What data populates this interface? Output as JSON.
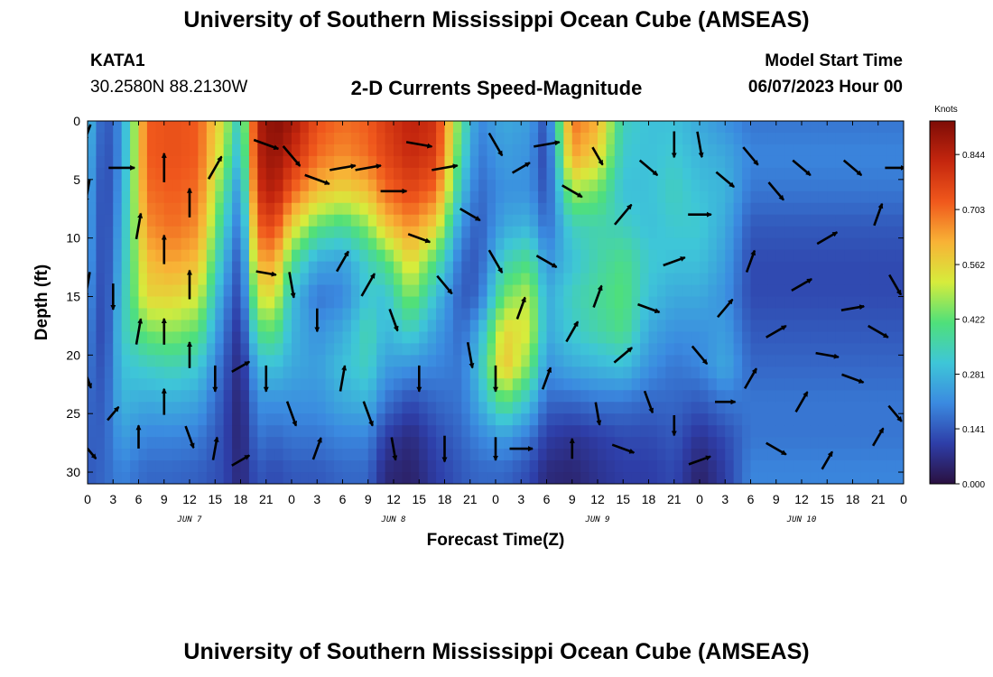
{
  "header": {
    "title": "University of Southern Mississippi Ocean Cube (AMSEAS)",
    "station": "KATA1",
    "coordinates": "30.2580N  88.2130W",
    "subtitle": "2-D Currents Speed-Magnitude",
    "start_label": "Model Start Time",
    "start_value": "06/07/2023 Hour 00"
  },
  "footer": {
    "title": "University of Southern Mississippi Ocean Cube (AMSEAS)"
  },
  "chart_data": {
    "type": "heatmap",
    "title": "2-D Currents Speed-Magnitude",
    "xlabel": "Forecast Time(Z)",
    "ylabel": "Depth (ft)",
    "x_tick_labels": [
      "0",
      "3",
      "6",
      "9",
      "12",
      "15",
      "18",
      "21",
      "0",
      "3",
      "6",
      "9",
      "12",
      "15",
      "18",
      "21",
      "0",
      "3",
      "6",
      "9",
      "12",
      "15",
      "18",
      "21",
      "0",
      "3",
      "6",
      "9",
      "12",
      "15",
      "18",
      "21",
      "0"
    ],
    "x_range_hours": [
      0,
      96
    ],
    "day_labels": [
      {
        "label": "JUN 7",
        "hour": 12
      },
      {
        "label": "JUN 8",
        "hour": 36
      },
      {
        "label": "JUN 9",
        "hour": 60
      },
      {
        "label": "JUN 10",
        "hour": 84
      }
    ],
    "y_ticks": [
      0,
      5,
      10,
      15,
      20,
      25,
      30
    ],
    "y_range_ft": [
      0,
      31
    ],
    "y_inverted": true,
    "colorbar": {
      "title": "Knots",
      "ticks": [
        0.0,
        0.141,
        0.281,
        0.422,
        0.562,
        0.703,
        0.844
      ],
      "tick_labels": [
        "0.000",
        "0.141",
        "0.281",
        "0.422",
        "0.562",
        "0.703",
        "0.844"
      ],
      "range": [
        0,
        0.93
      ],
      "colors": [
        "#2a1040",
        "#2e3ea8",
        "#3b8ae0",
        "#3ec6d8",
        "#4fe07a",
        "#d6ec3c",
        "#f8b236",
        "#f0581c",
        "#c4260e",
        "#7e0c06"
      ]
    },
    "depths": [
      0,
      3,
      6,
      9,
      12,
      15,
      18,
      21,
      24,
      27,
      30
    ],
    "speed_knots_by_time": [
      {
        "hour": 0,
        "speeds": [
          0.3,
          0.28,
          0.26,
          0.25,
          0.24,
          0.22,
          0.2,
          0.18,
          0.16,
          0.15,
          0.14
        ]
      },
      {
        "hour": 2,
        "speeds": [
          0.12,
          0.11,
          0.1,
          0.1,
          0.1,
          0.1,
          0.1,
          0.12,
          0.14,
          0.15,
          0.16
        ]
      },
      {
        "hour": 4,
        "speeds": [
          0.22,
          0.22,
          0.24,
          0.26,
          0.28,
          0.3,
          0.32,
          0.3,
          0.28,
          0.24,
          0.2
        ]
      },
      {
        "hour": 7,
        "speeds": [
          0.72,
          0.72,
          0.7,
          0.66,
          0.6,
          0.56,
          0.44,
          0.33,
          0.26,
          0.2,
          0.16
        ]
      },
      {
        "hour": 10,
        "speeds": [
          0.74,
          0.74,
          0.72,
          0.7,
          0.64,
          0.56,
          0.46,
          0.35,
          0.27,
          0.2,
          0.16
        ]
      },
      {
        "hour": 13,
        "speeds": [
          0.72,
          0.72,
          0.7,
          0.66,
          0.6,
          0.52,
          0.42,
          0.32,
          0.25,
          0.19,
          0.15
        ]
      },
      {
        "hour": 16,
        "speeds": [
          0.52,
          0.48,
          0.4,
          0.34,
          0.28,
          0.22,
          0.18,
          0.15,
          0.13,
          0.12,
          0.12
        ]
      },
      {
        "hour": 18,
        "speeds": [
          0.3,
          0.26,
          0.2,
          0.16,
          0.12,
          0.1,
          0.07,
          0.05,
          0.04,
          0.04,
          0.05
        ]
      },
      {
        "hour": 20,
        "speeds": [
          0.85,
          0.84,
          0.8,
          0.72,
          0.62,
          0.52,
          0.4,
          0.28,
          0.22,
          0.18,
          0.14
        ]
      },
      {
        "hour": 22,
        "speeds": [
          0.92,
          0.9,
          0.86,
          0.76,
          0.64,
          0.54,
          0.42,
          0.3,
          0.22,
          0.16,
          0.12
        ]
      },
      {
        "hour": 24,
        "speeds": [
          0.88,
          0.82,
          0.72,
          0.56,
          0.4,
          0.3,
          0.28,
          0.26,
          0.22,
          0.18,
          0.14
        ]
      },
      {
        "hour": 27,
        "speeds": [
          0.74,
          0.7,
          0.6,
          0.42,
          0.26,
          0.18,
          0.22,
          0.24,
          0.22,
          0.18,
          0.14
        ]
      },
      {
        "hour": 30,
        "speeds": [
          0.7,
          0.66,
          0.56,
          0.38,
          0.24,
          0.2,
          0.26,
          0.3,
          0.26,
          0.2,
          0.16
        ]
      },
      {
        "hour": 33,
        "speeds": [
          0.72,
          0.7,
          0.6,
          0.46,
          0.34,
          0.32,
          0.36,
          0.34,
          0.28,
          0.2,
          0.16
        ]
      },
      {
        "hour": 35,
        "speeds": [
          0.78,
          0.76,
          0.7,
          0.58,
          0.4,
          0.3,
          0.28,
          0.24,
          0.18,
          0.1,
          0.06
        ]
      },
      {
        "hour": 38,
        "speeds": [
          0.84,
          0.82,
          0.76,
          0.66,
          0.56,
          0.46,
          0.34,
          0.22,
          0.12,
          0.06,
          0.04
        ]
      },
      {
        "hour": 41,
        "speeds": [
          0.8,
          0.78,
          0.7,
          0.56,
          0.4,
          0.3,
          0.24,
          0.2,
          0.16,
          0.12,
          0.1
        ]
      },
      {
        "hour": 44,
        "speeds": [
          0.4,
          0.36,
          0.3,
          0.22,
          0.16,
          0.14,
          0.16,
          0.18,
          0.18,
          0.16,
          0.14
        ]
      },
      {
        "hour": 46,
        "speeds": [
          0.2,
          0.18,
          0.16,
          0.14,
          0.14,
          0.16,
          0.26,
          0.3,
          0.26,
          0.2,
          0.16
        ]
      },
      {
        "hour": 49,
        "speeds": [
          0.26,
          0.24,
          0.22,
          0.26,
          0.34,
          0.44,
          0.56,
          0.6,
          0.42,
          0.24,
          0.16
        ]
      },
      {
        "hour": 52,
        "speeds": [
          0.24,
          0.22,
          0.22,
          0.28,
          0.4,
          0.5,
          0.52,
          0.44,
          0.3,
          0.18,
          0.12
        ]
      },
      {
        "hour": 54,
        "speeds": [
          0.12,
          0.1,
          0.12,
          0.16,
          0.22,
          0.26,
          0.26,
          0.22,
          0.16,
          0.1,
          0.06
        ]
      },
      {
        "hour": 57,
        "speeds": [
          0.7,
          0.64,
          0.48,
          0.34,
          0.3,
          0.34,
          0.32,
          0.26,
          0.16,
          0.08,
          0.05
        ]
      },
      {
        "hour": 60,
        "speeds": [
          0.62,
          0.56,
          0.44,
          0.36,
          0.36,
          0.38,
          0.36,
          0.28,
          0.18,
          0.1,
          0.08
        ]
      },
      {
        "hour": 63,
        "speeds": [
          0.34,
          0.32,
          0.3,
          0.34,
          0.4,
          0.42,
          0.4,
          0.3,
          0.18,
          0.12,
          0.1
        ]
      },
      {
        "hour": 66,
        "speeds": [
          0.3,
          0.3,
          0.3,
          0.3,
          0.32,
          0.3,
          0.26,
          0.22,
          0.16,
          0.12,
          0.1
        ]
      },
      {
        "hour": 69,
        "speeds": [
          0.3,
          0.32,
          0.34,
          0.32,
          0.3,
          0.26,
          0.22,
          0.18,
          0.16,
          0.14,
          0.12
        ]
      },
      {
        "hour": 72,
        "speeds": [
          0.26,
          0.28,
          0.3,
          0.32,
          0.3,
          0.26,
          0.22,
          0.2,
          0.14,
          0.08,
          0.04
        ]
      },
      {
        "hour": 75,
        "speeds": [
          0.22,
          0.26,
          0.28,
          0.26,
          0.24,
          0.22,
          0.24,
          0.26,
          0.18,
          0.12,
          0.1
        ]
      },
      {
        "hour": 78,
        "speeds": [
          0.18,
          0.2,
          0.18,
          0.14,
          0.12,
          0.12,
          0.14,
          0.16,
          0.18,
          0.18,
          0.2
        ]
      }
    ],
    "current_vectors": [
      {
        "hour": 0,
        "depth": 1,
        "dir_deg": 200,
        "len": 0.6
      },
      {
        "hour": 0,
        "depth": 6,
        "dir_deg": 190,
        "len": 0.8
      },
      {
        "hour": 0,
        "depth": 14,
        "dir_deg": 190,
        "len": 0.9
      },
      {
        "hour": 0,
        "depth": 22,
        "dir_deg": 160,
        "len": 0.7
      },
      {
        "hour": 0,
        "depth": 28,
        "dir_deg": 140,
        "len": 0.9
      },
      {
        "hour": 3,
        "depth": 15,
        "dir_deg": 180,
        "len": 0.9
      },
      {
        "hour": 3,
        "depth": 25,
        "dir_deg": 40,
        "len": 0.6
      },
      {
        "hour": 4,
        "depth": 4,
        "dir_deg": 90,
        "len": 0.9
      },
      {
        "hour": 6,
        "depth": 9,
        "dir_deg": 10,
        "len": 0.9
      },
      {
        "hour": 6,
        "depth": 18,
        "dir_deg": 10,
        "len": 0.9
      },
      {
        "hour": 6,
        "depth": 27,
        "dir_deg": 0,
        "len": 0.8
      },
      {
        "hour": 9,
        "depth": 4,
        "dir_deg": 0,
        "len": 1.0
      },
      {
        "hour": 9,
        "depth": 11,
        "dir_deg": 0,
        "len": 1.0
      },
      {
        "hour": 9,
        "depth": 18,
        "dir_deg": 0,
        "len": 0.9
      },
      {
        "hour": 9,
        "depth": 24,
        "dir_deg": 0,
        "len": 0.9
      },
      {
        "hour": 12,
        "depth": 7,
        "dir_deg": 0,
        "len": 1.0
      },
      {
        "hour": 12,
        "depth": 14,
        "dir_deg": 0,
        "len": 1.0
      },
      {
        "hour": 12,
        "depth": 20,
        "dir_deg": 0,
        "len": 0.9
      },
      {
        "hour": 12,
        "depth": 27,
        "dir_deg": 160,
        "len": 0.8
      },
      {
        "hour": 15,
        "depth": 4,
        "dir_deg": 30,
        "len": 0.9
      },
      {
        "hour": 15,
        "depth": 22,
        "dir_deg": 180,
        "len": 0.9
      },
      {
        "hour": 15,
        "depth": 28,
        "dir_deg": 10,
        "len": 0.8
      },
      {
        "hour": 18,
        "depth": 21,
        "dir_deg": 60,
        "len": 0.7
      },
      {
        "hour": 18,
        "depth": 29,
        "dir_deg": 60,
        "len": 0.7
      },
      {
        "hour": 21,
        "depth": 2,
        "dir_deg": 110,
        "len": 0.9
      },
      {
        "hour": 21,
        "depth": 13,
        "dir_deg": 100,
        "len": 0.7
      },
      {
        "hour": 21,
        "depth": 22,
        "dir_deg": 180,
        "len": 0.9
      },
      {
        "hour": 24,
        "depth": 3,
        "dir_deg": 140,
        "len": 0.9
      },
      {
        "hour": 24,
        "depth": 14,
        "dir_deg": 170,
        "len": 0.9
      },
      {
        "hour": 24,
        "depth": 25,
        "dir_deg": 160,
        "len": 0.9
      },
      {
        "hour": 27,
        "depth": 5,
        "dir_deg": 110,
        "len": 0.9
      },
      {
        "hour": 27,
        "depth": 17,
        "dir_deg": 180,
        "len": 0.8
      },
      {
        "hour": 27,
        "depth": 28,
        "dir_deg": 20,
        "len": 0.8
      },
      {
        "hour": 30,
        "depth": 4,
        "dir_deg": 80,
        "len": 0.9
      },
      {
        "hour": 30,
        "depth": 12,
        "dir_deg": 30,
        "len": 0.8
      },
      {
        "hour": 30,
        "depth": 22,
        "dir_deg": 10,
        "len": 0.9
      },
      {
        "hour": 33,
        "depth": 4,
        "dir_deg": 80,
        "len": 0.9
      },
      {
        "hour": 33,
        "depth": 14,
        "dir_deg": 30,
        "len": 0.9
      },
      {
        "hour": 33,
        "depth": 25,
        "dir_deg": 160,
        "len": 0.9
      },
      {
        "hour": 36,
        "depth": 6,
        "dir_deg": 90,
        "len": 0.9
      },
      {
        "hour": 36,
        "depth": 17,
        "dir_deg": 160,
        "len": 0.8
      },
      {
        "hour": 36,
        "depth": 28,
        "dir_deg": 170,
        "len": 0.8
      },
      {
        "hour": 39,
        "depth": 2,
        "dir_deg": 100,
        "len": 0.9
      },
      {
        "hour": 39,
        "depth": 10,
        "dir_deg": 110,
        "len": 0.8
      },
      {
        "hour": 39,
        "depth": 22,
        "dir_deg": 180,
        "len": 0.9
      },
      {
        "hour": 42,
        "depth": 4,
        "dir_deg": 80,
        "len": 0.9
      },
      {
        "hour": 42,
        "depth": 14,
        "dir_deg": 140,
        "len": 0.8
      },
      {
        "hour": 42,
        "depth": 28,
        "dir_deg": 180,
        "len": 0.9
      },
      {
        "hour": 45,
        "depth": 8,
        "dir_deg": 120,
        "len": 0.8
      },
      {
        "hour": 45,
        "depth": 20,
        "dir_deg": 170,
        "len": 0.9
      },
      {
        "hour": 48,
        "depth": 2,
        "dir_deg": 150,
        "len": 0.9
      },
      {
        "hour": 48,
        "depth": 12,
        "dir_deg": 150,
        "len": 0.9
      },
      {
        "hour": 48,
        "depth": 22,
        "dir_deg": 180,
        "len": 0.9
      },
      {
        "hour": 48,
        "depth": 28,
        "dir_deg": 180,
        "len": 0.8
      },
      {
        "hour": 51,
        "depth": 4,
        "dir_deg": 60,
        "len": 0.7
      },
      {
        "hour": 51,
        "depth": 16,
        "dir_deg": 20,
        "len": 0.8
      },
      {
        "hour": 51,
        "depth": 28,
        "dir_deg": 90,
        "len": 0.8
      },
      {
        "hour": 54,
        "depth": 2,
        "dir_deg": 80,
        "len": 0.9
      },
      {
        "hour": 54,
        "depth": 12,
        "dir_deg": 120,
        "len": 0.8
      },
      {
        "hour": 54,
        "depth": 22,
        "dir_deg": 20,
        "len": 0.8
      },
      {
        "hour": 57,
        "depth": 6,
        "dir_deg": 120,
        "len": 0.8
      },
      {
        "hour": 57,
        "depth": 18,
        "dir_deg": 30,
        "len": 0.8
      },
      {
        "hour": 57,
        "depth": 28,
        "dir_deg": 0,
        "len": 0.7
      },
      {
        "hour": 60,
        "depth": 3,
        "dir_deg": 150,
        "len": 0.7
      },
      {
        "hour": 60,
        "depth": 15,
        "dir_deg": 20,
        "len": 0.8
      },
      {
        "hour": 60,
        "depth": 25,
        "dir_deg": 170,
        "len": 0.8
      },
      {
        "hour": 63,
        "depth": 8,
        "dir_deg": 40,
        "len": 0.9
      },
      {
        "hour": 63,
        "depth": 20,
        "dir_deg": 50,
        "len": 0.8
      },
      {
        "hour": 63,
        "depth": 28,
        "dir_deg": 110,
        "len": 0.8
      },
      {
        "hour": 66,
        "depth": 4,
        "dir_deg": 130,
        "len": 0.8
      },
      {
        "hour": 66,
        "depth": 16,
        "dir_deg": 110,
        "len": 0.8
      },
      {
        "hour": 66,
        "depth": 24,
        "dir_deg": 160,
        "len": 0.8
      },
      {
        "hour": 69,
        "depth": 2,
        "dir_deg": 180,
        "len": 0.9
      },
      {
        "hour": 69,
        "depth": 12,
        "dir_deg": 70,
        "len": 0.8
      },
      {
        "hour": 69,
        "depth": 26,
        "dir_deg": 180,
        "len": 0.7
      },
      {
        "hour": 72,
        "depth": 2,
        "dir_deg": 170,
        "len": 0.9
      },
      {
        "hour": 72,
        "depth": 8,
        "dir_deg": 90,
        "len": 0.8
      },
      {
        "hour": 72,
        "depth": 20,
        "dir_deg": 140,
        "len": 0.8
      },
      {
        "hour": 72,
        "depth": 29,
        "dir_deg": 70,
        "len": 0.8
      },
      {
        "hour": 75,
        "depth": 5,
        "dir_deg": 130,
        "len": 0.8
      },
      {
        "hour": 75,
        "depth": 16,
        "dir_deg": 40,
        "len": 0.8
      },
      {
        "hour": 75,
        "depth": 24,
        "dir_deg": 90,
        "len": 0.7
      },
      {
        "hour": 78,
        "depth": 3,
        "dir_deg": 140,
        "len": 0.8
      },
      {
        "hour": 78,
        "depth": 12,
        "dir_deg": 20,
        "len": 0.8
      },
      {
        "hour": 78,
        "depth": 22,
        "dir_deg": 30,
        "len": 0.8
      },
      {
        "hour": 81,
        "depth": 6,
        "dir_deg": 140,
        "len": 0.8
      },
      {
        "hour": 81,
        "depth": 18,
        "dir_deg": 60,
        "len": 0.8
      },
      {
        "hour": 81,
        "depth": 28,
        "dir_deg": 120,
        "len": 0.8
      },
      {
        "hour": 84,
        "depth": 4,
        "dir_deg": 130,
        "len": 0.8
      },
      {
        "hour": 84,
        "depth": 14,
        "dir_deg": 60,
        "len": 0.8
      },
      {
        "hour": 84,
        "depth": 24,
        "dir_deg": 30,
        "len": 0.8
      },
      {
        "hour": 87,
        "depth": 10,
        "dir_deg": 60,
        "len": 0.8
      },
      {
        "hour": 87,
        "depth": 20,
        "dir_deg": 100,
        "len": 0.8
      },
      {
        "hour": 87,
        "depth": 29,
        "dir_deg": 30,
        "len": 0.7
      },
      {
        "hour": 90,
        "depth": 4,
        "dir_deg": 130,
        "len": 0.8
      },
      {
        "hour": 90,
        "depth": 16,
        "dir_deg": 80,
        "len": 0.8
      },
      {
        "hour": 90,
        "depth": 22,
        "dir_deg": 110,
        "len": 0.8
      },
      {
        "hour": 93,
        "depth": 8,
        "dir_deg": 20,
        "len": 0.8
      },
      {
        "hour": 93,
        "depth": 18,
        "dir_deg": 120,
        "len": 0.8
      },
      {
        "hour": 93,
        "depth": 27,
        "dir_deg": 30,
        "len": 0.7
      },
      {
        "hour": 95,
        "depth": 4,
        "dir_deg": 90,
        "len": 0.7
      },
      {
        "hour": 95,
        "depth": 14,
        "dir_deg": 150,
        "len": 0.8
      },
      {
        "hour": 95,
        "depth": 25,
        "dir_deg": 140,
        "len": 0.7
      }
    ]
  }
}
